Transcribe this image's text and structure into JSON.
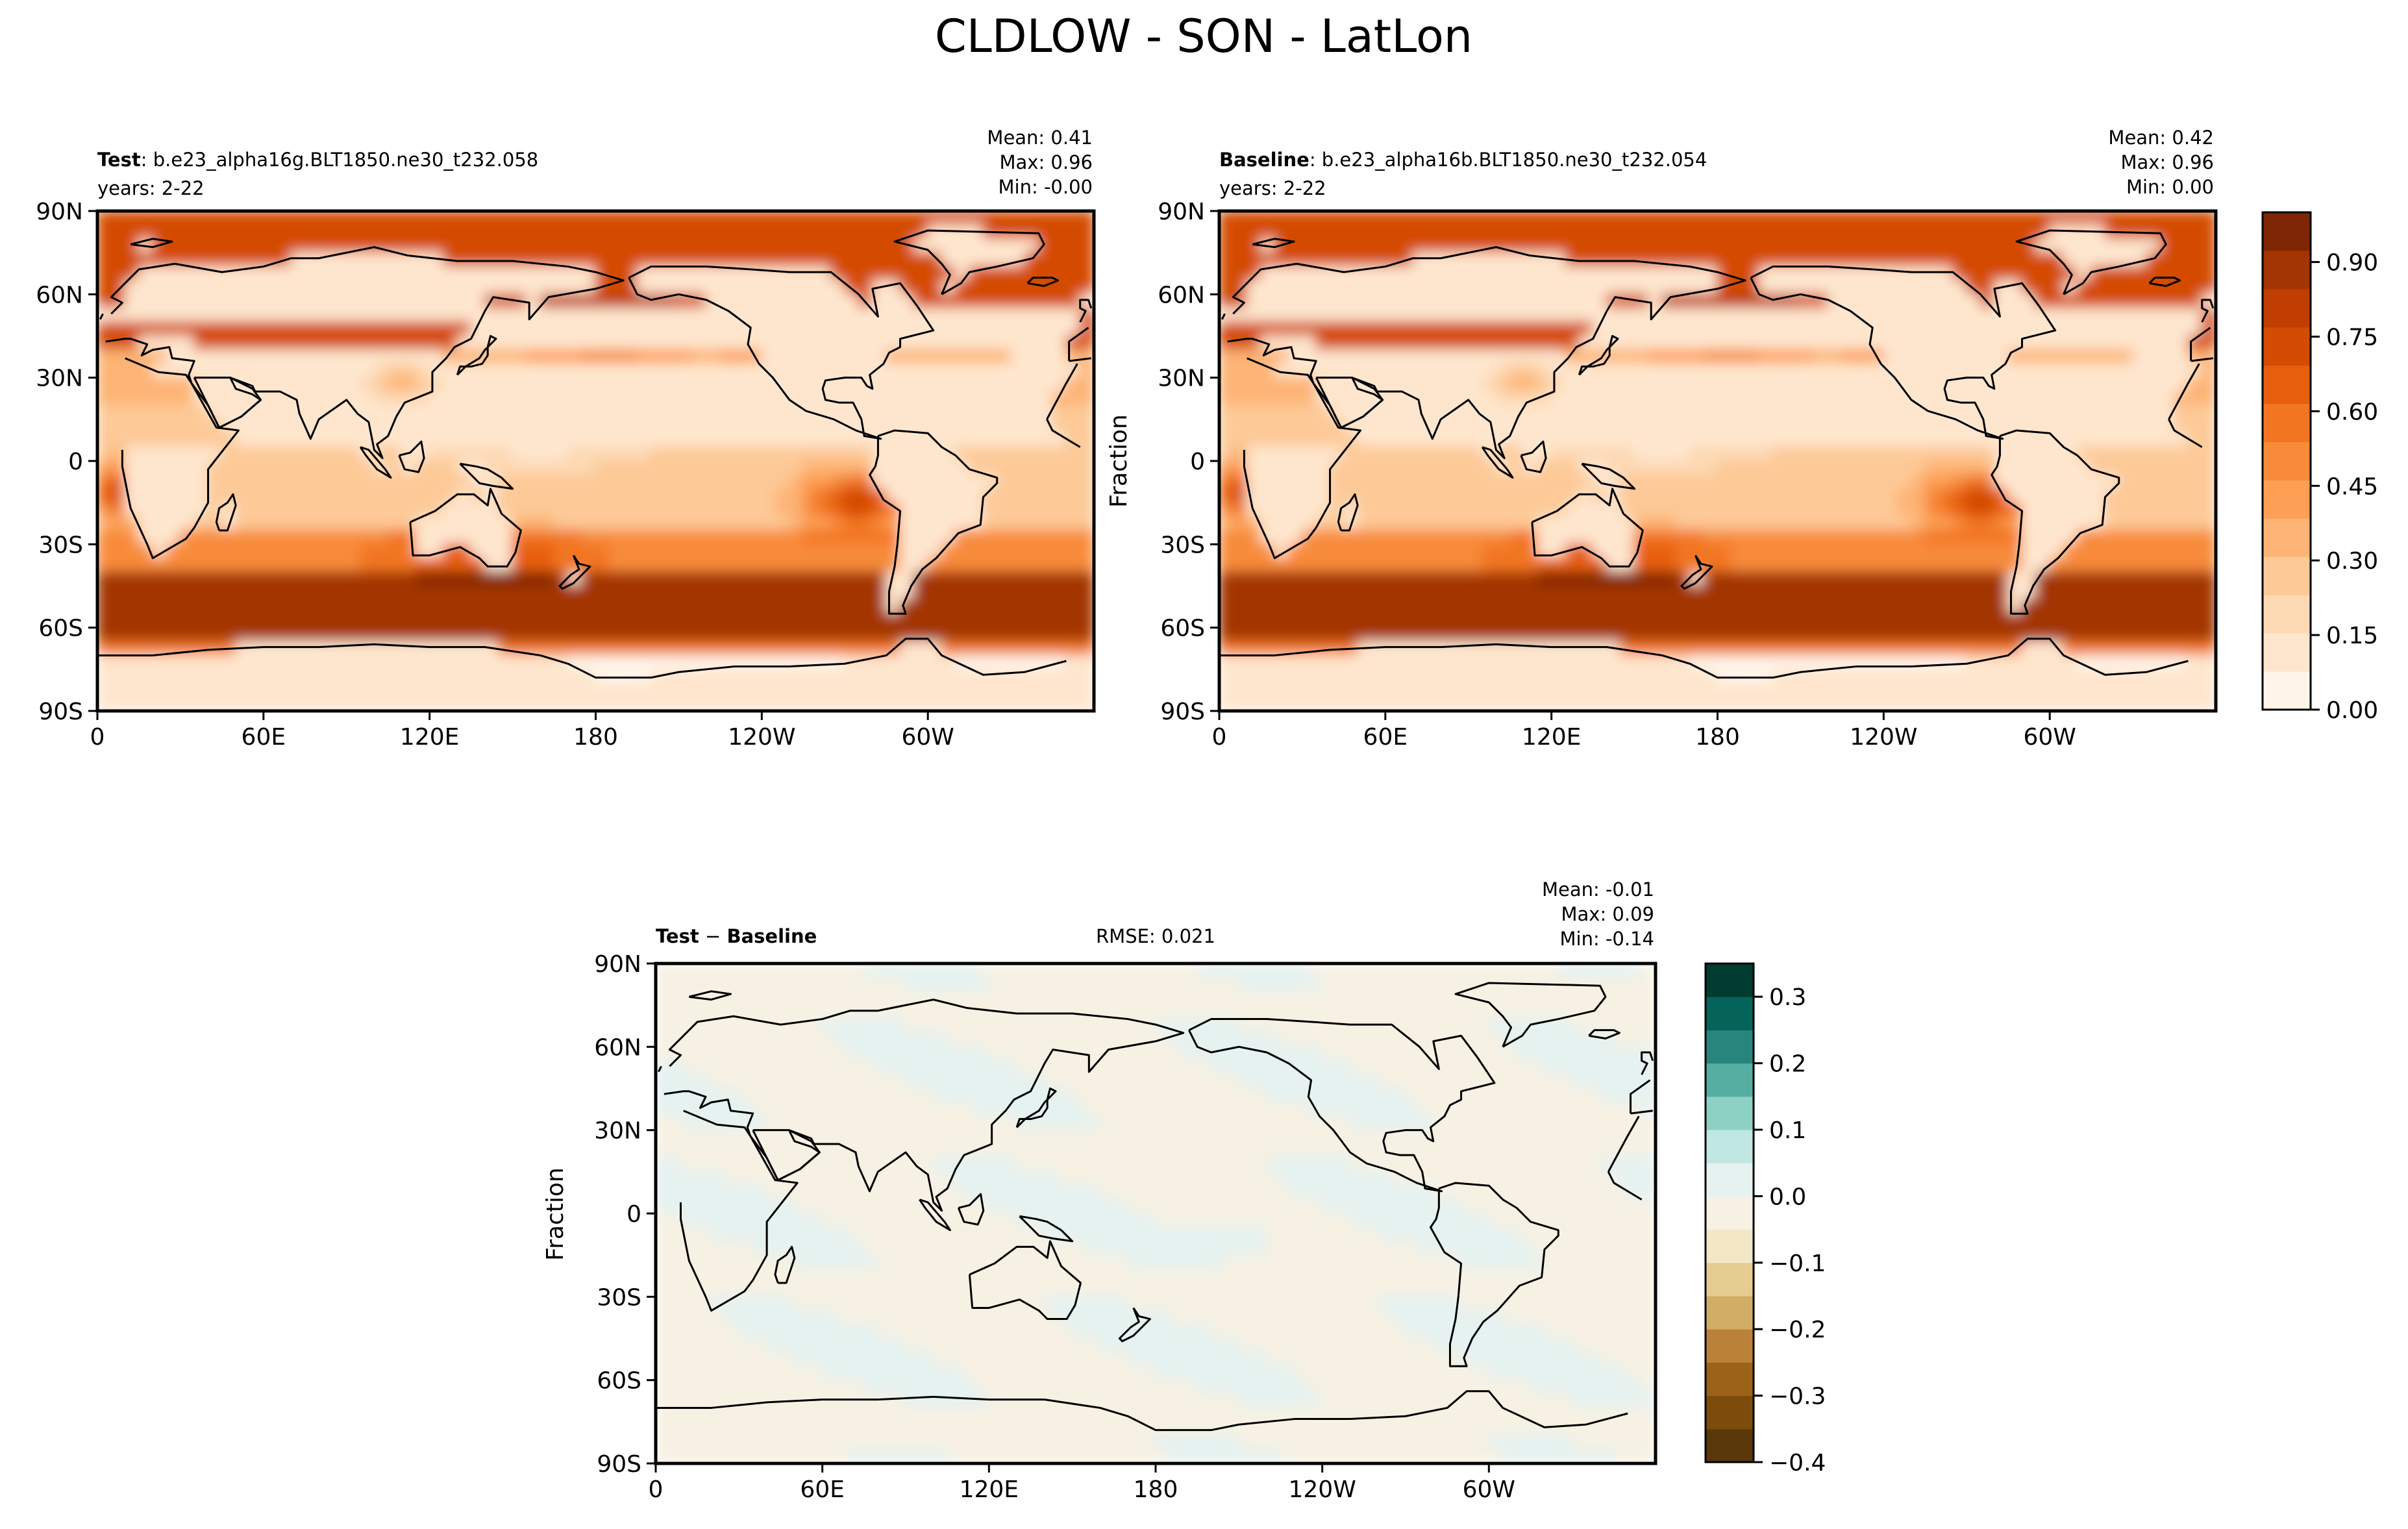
{
  "figure": {
    "title": "CLDLOW - SON - LatLon"
  },
  "colors": {
    "land_blank": "#fff5eb",
    "coast": "#000000",
    "oranges": [
      "#fff5eb",
      "#fee6ce",
      "#fdd9b4",
      "#fdc997",
      "#fdb474",
      "#fd9f55",
      "#f88b3a",
      "#f27622",
      "#e75f0d",
      "#d44b03",
      "#c03e02",
      "#a33503",
      "#7f2704"
    ],
    "brbg": [
      "#5b3809",
      "#7d4c0c",
      "#9c6218",
      "#bb8139",
      "#d2ad66",
      "#e5cc91",
      "#f3e7c5",
      "#f6f1e3",
      "#e5f2f0",
      "#c0e7e2",
      "#8dd1c5",
      "#56ada1",
      "#28857d",
      "#05645a",
      "#003c30"
    ]
  },
  "chart_data": [
    {
      "type": "heatmap",
      "map": "latlon",
      "label_bold": "Test",
      "label_rest": ": b.e23_alpha16g.BLT1850.ne30_t232.058",
      "years": "years: 2-22",
      "stats": [
        "Mean:  0.41",
        "Max:  0.96",
        "Min: -0.00"
      ],
      "ylabel": "",
      "xticks": [
        "0",
        "60E",
        "120E",
        "180",
        "120W",
        "60W"
      ],
      "yticks": [
        "90N",
        "60N",
        "30N",
        "0",
        "30S",
        "60S",
        "90S"
      ],
      "field": "cloud"
    },
    {
      "type": "heatmap",
      "map": "latlon",
      "label_bold": "Baseline",
      "label_rest": ": b.e23_alpha16b.BLT1850.ne30_t232.054",
      "years": "years: 2-22",
      "stats": [
        "Mean:  0.42",
        "Max:  0.96",
        "Min:  0.00"
      ],
      "ylabel": "Fraction",
      "xticks": [
        "0",
        "60E",
        "120E",
        "180",
        "120W",
        "60W"
      ],
      "yticks": [
        "90N",
        "60N",
        "30N",
        "0",
        "30S",
        "60S",
        "90S"
      ],
      "field": "cloud",
      "colorbar": {
        "range": [
          0,
          1
        ],
        "ticks": [
          "0.00",
          "0.15",
          "0.30",
          "0.45",
          "0.60",
          "0.75",
          "0.90"
        ],
        "tick_values": [
          0,
          0.15,
          0.3,
          0.45,
          0.6,
          0.75,
          0.9
        ]
      }
    },
    {
      "type": "heatmap",
      "map": "latlon",
      "label_bold": "Test",
      "label_minus": " − ",
      "label_bold2": "Baseline",
      "rmse": "RMSE: 0.021",
      "stats": [
        "Mean: -0.01",
        "Max:  0.09",
        "Min: -0.14"
      ],
      "ylabel": "Fraction",
      "xticks": [
        "0",
        "60E",
        "120E",
        "180",
        "120W",
        "60W"
      ],
      "yticks": [
        "90N",
        "60N",
        "30N",
        "0",
        "30S",
        "60S",
        "90S"
      ],
      "field": "diff",
      "colorbar": {
        "range": [
          -0.4,
          0.35
        ],
        "ticks": [
          "0.3",
          "0.2",
          "0.1",
          "0.0",
          "−0.1",
          "−0.2",
          "−0.3",
          "−0.4"
        ],
        "tick_values": [
          0.3,
          0.2,
          0.1,
          0.0,
          -0.1,
          -0.2,
          -0.3,
          -0.4
        ]
      }
    }
  ]
}
